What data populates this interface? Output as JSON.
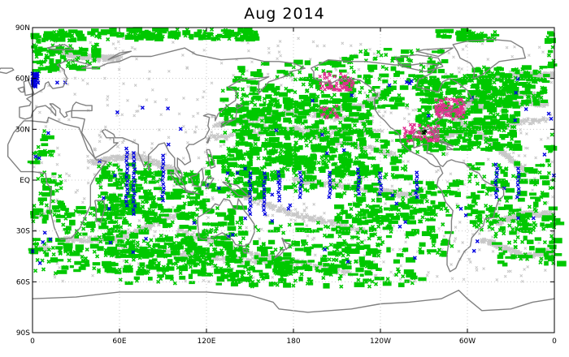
{
  "title": "Aug 2014",
  "map": {
    "projection": "equirectangular",
    "lon_range": [
      0,
      360
    ],
    "lat_range": [
      -90,
      90
    ],
    "grid": "dotted",
    "lat_ticks": [
      {
        "value": 90,
        "label": "90N"
      },
      {
        "value": 60,
        "label": "60N"
      },
      {
        "value": 30,
        "label": "30N"
      },
      {
        "value": 0,
        "label": "EQ"
      },
      {
        "value": -30,
        "label": "30S"
      },
      {
        "value": -60,
        "label": "60S"
      },
      {
        "value": -90,
        "label": "90S"
      }
    ],
    "lon_ticks": [
      {
        "value": 0,
        "label": "0"
      },
      {
        "value": 60,
        "label": "60E"
      },
      {
        "value": 120,
        "label": "120E"
      },
      {
        "value": 180,
        "label": "180"
      },
      {
        "value": 240,
        "label": "120W"
      },
      {
        "value": 300,
        "label": "60W"
      },
      {
        "value": 360,
        "label": "0"
      }
    ],
    "colors": {
      "coastline": "#808080",
      "ship_tracks": "#c8c8c8",
      "primary_obs": "#00c800",
      "secondary_obs": "#0000e0",
      "tertiary_obs": "#e03090",
      "rare_obs": "#000000"
    }
  }
}
